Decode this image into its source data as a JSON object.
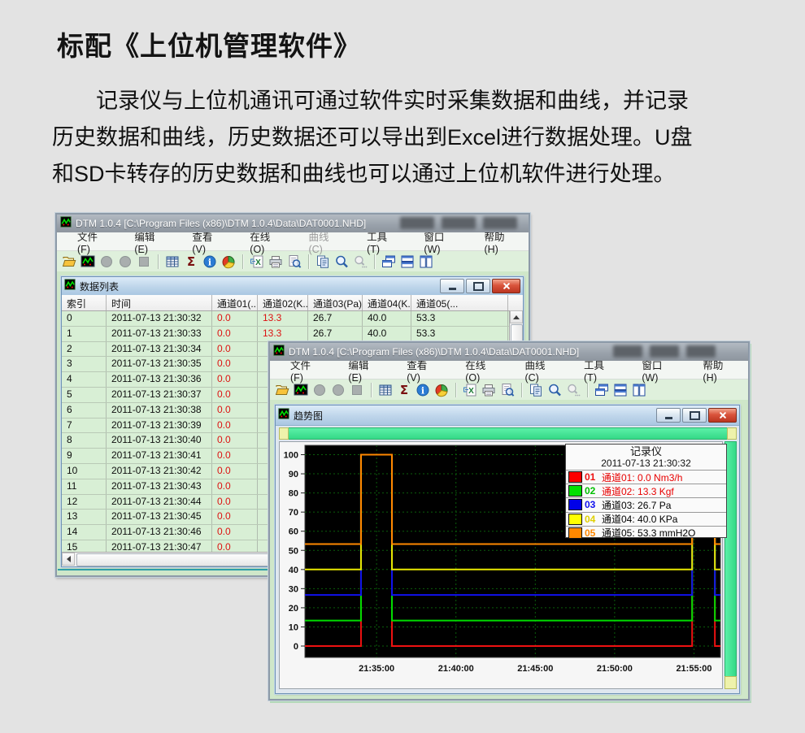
{
  "page": {
    "title": "标配《上位机管理软件》",
    "paragraph_lines": [
      "记录仪与上位机通讯可通过软件实时采集数据和曲线，并记录",
      "历史数据和曲线，历史数据还可以导出到Excel进行数据处理。U盘",
      "和SD卡转存的历史数据和曲线也可以通过上位机软件进行处理。"
    ]
  },
  "toolbar": {
    "icons": [
      "folder-open",
      "waveform-logo",
      "record-1",
      "record-2",
      "stop",
      "|",
      "data-grid",
      "sigma",
      "info",
      "pie-chart",
      "|",
      "excel-export",
      "print",
      "print-preview",
      "|",
      "copy",
      "zoom-in",
      "zoom-out-disabled",
      "|",
      "cascade-windows",
      "tile-horizontal",
      "tile-vertical"
    ]
  },
  "window1": {
    "title": "DTM 1.0.4 [C:\\Program Files (x86)\\DTM 1.0.4\\Data\\DAT0001.NHD]",
    "menu": [
      {
        "label": "文件(F)",
        "enabled": true
      },
      {
        "label": "编辑(E)",
        "enabled": true
      },
      {
        "label": "查看(V)",
        "enabled": true
      },
      {
        "label": "在线(O)",
        "enabled": true
      },
      {
        "label": "曲线(C)",
        "enabled": false
      },
      {
        "label": "工具(T)",
        "enabled": true
      },
      {
        "label": "窗口(W)",
        "enabled": true
      },
      {
        "label": "帮助(H)",
        "enabled": true
      }
    ],
    "datalist": {
      "title": "数据列表",
      "window_buttons": [
        "minimize",
        "restore",
        "close"
      ],
      "columns": [
        "索引",
        "时间",
        "通道01(...",
        "通道02(K...",
        "通道03(Pa)",
        "通道04(K...",
        "通道05(..."
      ],
      "rows": [
        [
          "0",
          "2011-07-13 21:30:32",
          "0.0",
          "13.3",
          "26.7",
          "40.0",
          "53.3"
        ],
        [
          "1",
          "2011-07-13 21:30:33",
          "0.0",
          "13.3",
          "26.7",
          "40.0",
          "53.3"
        ],
        [
          "2",
          "2011-07-13 21:30:34",
          "0.0",
          "",
          "",
          "",
          ""
        ],
        [
          "3",
          "2011-07-13 21:30:35",
          "0.0",
          "",
          "",
          "",
          ""
        ],
        [
          "4",
          "2011-07-13 21:30:36",
          "0.0",
          "",
          "",
          "",
          ""
        ],
        [
          "5",
          "2011-07-13 21:30:37",
          "0.0",
          "",
          "",
          "",
          ""
        ],
        [
          "6",
          "2011-07-13 21:30:38",
          "0.0",
          "",
          "",
          "",
          ""
        ],
        [
          "7",
          "2011-07-13 21:30:39",
          "0.0",
          "",
          "",
          "",
          ""
        ],
        [
          "8",
          "2011-07-13 21:30:40",
          "0.0",
          "",
          "",
          "",
          ""
        ],
        [
          "9",
          "2011-07-13 21:30:41",
          "0.0",
          "",
          "",
          "",
          ""
        ],
        [
          "10",
          "2011-07-13 21:30:42",
          "0.0",
          "",
          "",
          "",
          ""
        ],
        [
          "11",
          "2011-07-13 21:30:43",
          "0.0",
          "",
          "",
          "",
          ""
        ],
        [
          "12",
          "2011-07-13 21:30:44",
          "0.0",
          "",
          "",
          "",
          ""
        ],
        [
          "13",
          "2011-07-13 21:30:45",
          "0.0",
          "",
          "",
          "",
          ""
        ],
        [
          "14",
          "2011-07-13 21:30:46",
          "0.0",
          "",
          "",
          "",
          ""
        ],
        [
          "15",
          "2011-07-13 21:30:47",
          "0.0",
          "",
          "",
          "",
          ""
        ]
      ]
    }
  },
  "window2": {
    "title": "DTM 1.0.4 [C:\\Program Files (x86)\\DTM 1.0.4\\Data\\DAT0001.NHD]",
    "menu": [
      {
        "label": "文件(F)",
        "enabled": true
      },
      {
        "label": "编辑(E)",
        "enabled": true
      },
      {
        "label": "查看(V)",
        "enabled": true
      },
      {
        "label": "在线(O)",
        "enabled": true
      },
      {
        "label": "曲线(C)",
        "enabled": true
      },
      {
        "label": "工具(T)",
        "enabled": true
      },
      {
        "label": "窗口(W)",
        "enabled": true
      },
      {
        "label": "帮助(H)",
        "enabled": true
      }
    ],
    "trend": {
      "title": "趋势图",
      "window_buttons": [
        "minimize",
        "restore",
        "close"
      ]
    }
  },
  "chart_data": {
    "type": "line",
    "title": "趋势图",
    "legend_title": "记录仪",
    "timestamp": "2011-07-13 21:30:32",
    "plot_bg": "#000000",
    "grid_color": "#0b5e0b",
    "grid": true,
    "legend_position": "top-right",
    "ylim": [
      0,
      100
    ],
    "y_ticks": [
      0,
      10,
      20,
      30,
      40,
      50,
      60,
      70,
      80,
      90,
      100
    ],
    "x_ticks": [
      "21:35:00",
      "21:40:00",
      "21:45:00",
      "21:50:00",
      "21:55:00"
    ],
    "x_start": "21:30:29",
    "x_end": "21:56:40",
    "series": [
      {
        "name": "通道01",
        "unit": "Nm3/h",
        "color": "#ee1111",
        "baseline": 0.0,
        "legend_label": "通道01: 0.0 Nm3/h",
        "legend_label_color": "#e80000",
        "swatch": "#ff0000",
        "num": "01",
        "num_color": "#ee1111"
      },
      {
        "name": "通道02",
        "unit": "Kgf",
        "color": "#00dd00",
        "baseline": 13.3,
        "legend_label": "通道02: 13.3 Kgf",
        "legend_label_color": "#e80000",
        "swatch": "#00e000",
        "num": "02",
        "num_color": "#00c000"
      },
      {
        "name": "通道03",
        "unit": "Pa",
        "color": "#1111ee",
        "baseline": 26.7,
        "legend_label": "通道03: 26.7 Pa",
        "legend_label_color": "#000000",
        "swatch": "#0000e8",
        "num": "03",
        "num_color": "#1111ee"
      },
      {
        "name": "通道04",
        "unit": "KPa",
        "color": "#e8e800",
        "baseline": 40.0,
        "legend_label": "通道04: 40.0 KPa",
        "legend_label_color": "#000000",
        "swatch": "#ffff00",
        "num": "04",
        "num_color": "#e0d000"
      },
      {
        "name": "通道05",
        "unit": "mmH2O",
        "color": "#ff8800",
        "baseline": 53.3,
        "legend_label": "通道05: 53.3 mmH2O",
        "legend_label_color": "#000000",
        "swatch": "#ff8800",
        "num": "05",
        "num_color": "#ff8800"
      }
    ],
    "pulses": [
      {
        "start": "21:34:01",
        "end": "21:35:58",
        "value": 100
      },
      {
        "start": "21:54:53",
        "end": "21:56:19",
        "value": 100
      }
    ]
  }
}
